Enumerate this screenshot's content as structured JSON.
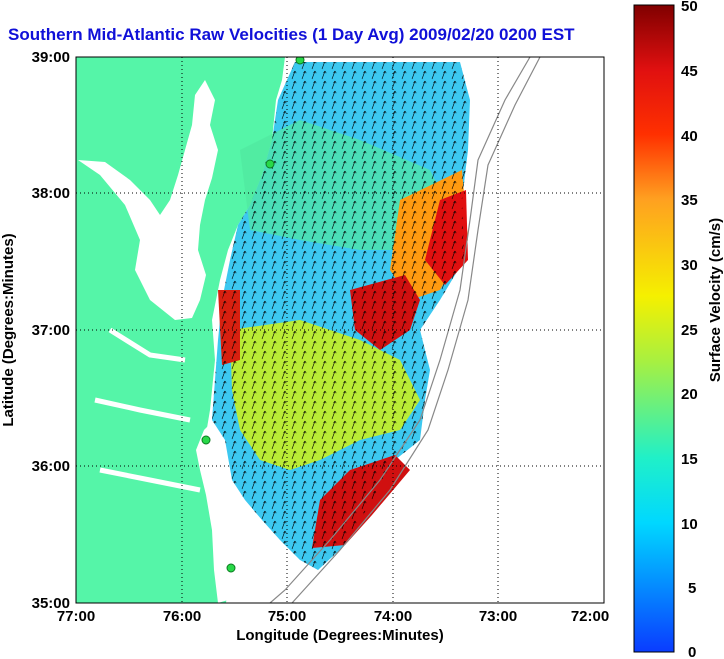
{
  "title": "Southern Mid-Atlantic Raw Velocities (1 Day Avg) 2009/02/20 0200 EST",
  "map": {
    "x_axis": {
      "label": "Longitude (Degrees:Minutes)",
      "ticks": [
        "77:00",
        "76:00",
        "75:00",
        "74:00",
        "73:00",
        "72:00"
      ]
    },
    "y_axis": {
      "label": "Latitude (Degrees:Minutes)",
      "ticks": [
        "39:00",
        "38:00",
        "37:00",
        "36:00",
        "35:00"
      ]
    },
    "colors": {
      "land": "#55f5a8",
      "ocean": "#ffffff",
      "grid": "#000000",
      "bathymetry": "#888888",
      "station": "#28d848"
    }
  },
  "colorbar": {
    "label": "Surface Velocity (cm/s)",
    "min": 0,
    "max": 50,
    "ticks": [
      "50",
      "45",
      "40",
      "35",
      "30",
      "25",
      "20",
      "15",
      "10",
      "5",
      "0"
    ]
  }
}
